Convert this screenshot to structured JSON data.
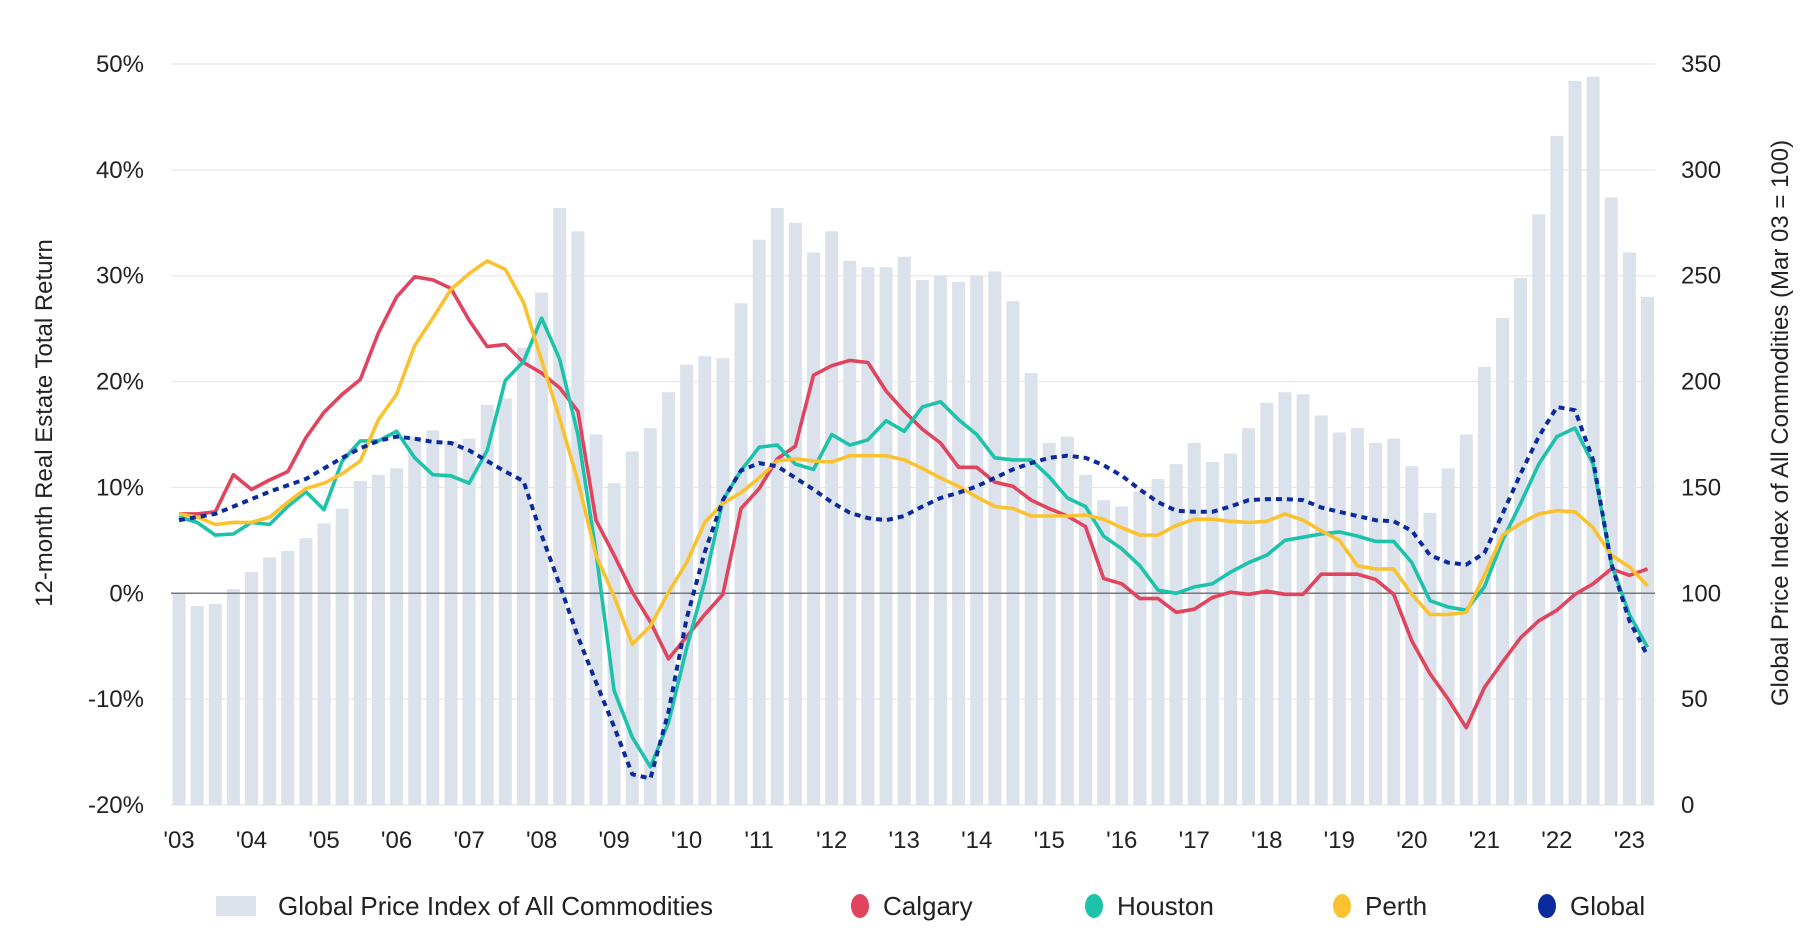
{
  "chart_data": {
    "type": "bar+line",
    "frequency": "quarterly",
    "period": [
      "2003 Q1",
      "2023 Q2"
    ],
    "xlabel": "",
    "x_tick_labels": [
      "'03",
      "'04",
      "'05",
      "'06",
      "'07",
      "'08",
      "'09",
      "'10",
      "'11",
      "'12",
      "'13",
      "'14",
      "'15",
      "'16",
      "'17",
      "'18",
      "'19",
      "'20",
      "'21",
      "'22",
      "'23"
    ],
    "y_left": {
      "label": "12-month Real Estate Total Return",
      "lim": [
        -20,
        50
      ],
      "tick_labels": [
        "50%",
        "40%",
        "30%",
        "20%",
        "10%",
        "0%",
        "-10%",
        "-20%"
      ],
      "ticks": [
        50,
        40,
        30,
        20,
        10,
        0,
        -10,
        -20
      ]
    },
    "y_right": {
      "label": "Global Price Index of All Commodities (Mar 03 = 100)",
      "lim": [
        0,
        350
      ],
      "tick_labels": [
        "350",
        "300",
        "250",
        "200",
        "150",
        "100",
        "50",
        "0"
      ],
      "ticks": [
        350,
        300,
        250,
        200,
        150,
        100,
        50,
        0
      ]
    },
    "grid": true,
    "legend_position": "bottom",
    "bars": {
      "name": "Global Price Index of All Commodities",
      "axis": "right",
      "color": "#DCE2EB",
      "values": [
        100,
        94,
        95,
        102,
        110,
        117,
        120,
        126,
        133,
        140,
        153,
        156,
        159,
        174,
        177,
        172,
        173,
        189,
        192,
        216,
        242,
        282,
        271,
        175,
        152,
        167,
        178,
        195,
        208,
        212,
        211,
        237,
        267,
        282,
        275,
        261,
        271,
        257,
        254,
        254,
        259,
        248,
        250,
        247,
        250,
        252,
        238,
        204,
        171,
        174,
        156,
        144,
        141,
        148,
        154,
        161,
        171,
        162,
        166,
        178,
        190,
        195,
        194,
        184,
        176,
        178,
        171,
        173,
        160,
        138,
        159,
        175,
        207,
        230,
        249,
        279,
        316,
        342,
        344,
        287,
        261,
        240
      ]
    },
    "series": [
      {
        "name": "Calgary",
        "axis": "left",
        "color": "#E0445E",
        "style": "solid",
        "values": [
          7.5,
          7.5,
          7.7,
          11.2,
          9.8,
          10.7,
          11.5,
          14.7,
          17.1,
          18.8,
          20.2,
          24.6,
          28.0,
          29.9,
          29.6,
          28.8,
          25.8,
          23.3,
          23.5,
          21.8,
          20.8,
          19.4,
          17.2,
          6.9,
          3.6,
          0.1,
          -2.7,
          -6.2,
          -4.1,
          -2.0,
          -0.1,
          8.0,
          9.9,
          12.7,
          13.9,
          20.6,
          21.5,
          22.0,
          21.8,
          19.1,
          17.2,
          15.5,
          14.2,
          11.9,
          11.9,
          10.5,
          10.1,
          8.8,
          8.0,
          7.3,
          6.3,
          1.4,
          0.9,
          -0.5,
          -0.5,
          -1.8,
          -1.5,
          -0.4,
          0.1,
          -0.1,
          0.2,
          -0.1,
          -0.1,
          1.8,
          1.8,
          1.8,
          1.3,
          -0.1,
          -4.5,
          -7.6,
          -10.0,
          -12.7,
          -8.9,
          -6.5,
          -4.2,
          -2.6,
          -1.6,
          -0.1,
          0.9,
          2.3,
          1.7,
          2.3
        ]
      },
      {
        "name": "Houston",
        "axis": "left",
        "color": "#1CC3AA",
        "style": "solid",
        "values": [
          7.2,
          6.7,
          5.5,
          5.6,
          6.7,
          6.5,
          8.2,
          9.6,
          7.9,
          12.5,
          14.4,
          14.4,
          15.3,
          12.8,
          11.2,
          11.1,
          10.4,
          13.5,
          20.1,
          21.9,
          26.0,
          22.1,
          15.0,
          3.9,
          -9.2,
          -13.6,
          -16.4,
          -12.2,
          -5.2,
          1.1,
          8.8,
          11.6,
          13.8,
          14.0,
          12.2,
          11.7,
          15.0,
          14.0,
          14.5,
          16.3,
          15.3,
          17.6,
          18.1,
          16.4,
          15.0,
          12.8,
          12.6,
          12.6,
          11.0,
          9.0,
          8.2,
          5.4,
          4.2,
          2.6,
          0.3,
          0.0,
          0.6,
          0.9,
          2.0,
          2.9,
          3.6,
          5.0,
          5.3,
          5.6,
          5.8,
          5.4,
          4.9,
          4.9,
          2.9,
          -0.7,
          -1.3,
          -1.6,
          0.6,
          5.0,
          8.5,
          12.2,
          14.8,
          15.6,
          12.2,
          2.8,
          -2.0,
          -5.1
        ]
      },
      {
        "name": "Perth",
        "axis": "left",
        "color": "#FBC230",
        "style": "solid",
        "values": [
          7.5,
          7.2,
          6.5,
          6.7,
          6.7,
          7.2,
          8.6,
          9.9,
          10.4,
          11.3,
          12.5,
          16.4,
          18.8,
          23.4,
          26.0,
          28.7,
          30.2,
          31.4,
          30.6,
          27.5,
          22.0,
          16.5,
          10.6,
          3.6,
          -0.3,
          -4.8,
          -3.1,
          0.1,
          2.9,
          6.7,
          8.5,
          9.5,
          10.9,
          12.5,
          12.7,
          12.5,
          12.4,
          13.0,
          13.0,
          13.0,
          12.6,
          11.8,
          10.9,
          10.1,
          9.1,
          8.2,
          8.0,
          7.3,
          7.3,
          7.3,
          7.4,
          7.0,
          6.2,
          5.5,
          5.5,
          6.4,
          7.0,
          7.0,
          6.8,
          6.7,
          6.8,
          7.5,
          6.9,
          5.9,
          5.0,
          2.6,
          2.3,
          2.3,
          -0.1,
          -2.0,
          -2.0,
          -1.8,
          1.7,
          5.5,
          6.6,
          7.5,
          7.8,
          7.7,
          6.2,
          3.6,
          2.5,
          0.7
        ]
      },
      {
        "name": "Global",
        "axis": "left",
        "color": "#0B2A9E",
        "style": "dashed",
        "values": [
          6.9,
          7.2,
          7.5,
          8.2,
          8.9,
          9.6,
          10.2,
          10.8,
          11.8,
          12.8,
          13.7,
          14.4,
          14.8,
          14.6,
          14.3,
          14.2,
          13.5,
          12.5,
          11.5,
          10.6,
          5.5,
          0.8,
          -4.1,
          -8.4,
          -12.6,
          -17.1,
          -17.5,
          -11.2,
          -2.4,
          3.9,
          8.8,
          11.6,
          12.3,
          12.0,
          10.9,
          9.8,
          8.6,
          7.6,
          7.1,
          6.9,
          7.3,
          8.2,
          9.0,
          9.5,
          10.1,
          10.9,
          11.7,
          12.3,
          12.8,
          13.0,
          12.8,
          12.1,
          11.1,
          9.8,
          8.6,
          7.8,
          7.7,
          7.7,
          8.2,
          8.8,
          8.9,
          8.9,
          8.8,
          8.1,
          7.7,
          7.3,
          6.9,
          6.8,
          5.9,
          3.6,
          2.9,
          2.7,
          3.8,
          7.5,
          11.3,
          14.8,
          17.6,
          17.3,
          12.6,
          2.8,
          -2.6,
          -5.9
        ]
      }
    ]
  }
}
